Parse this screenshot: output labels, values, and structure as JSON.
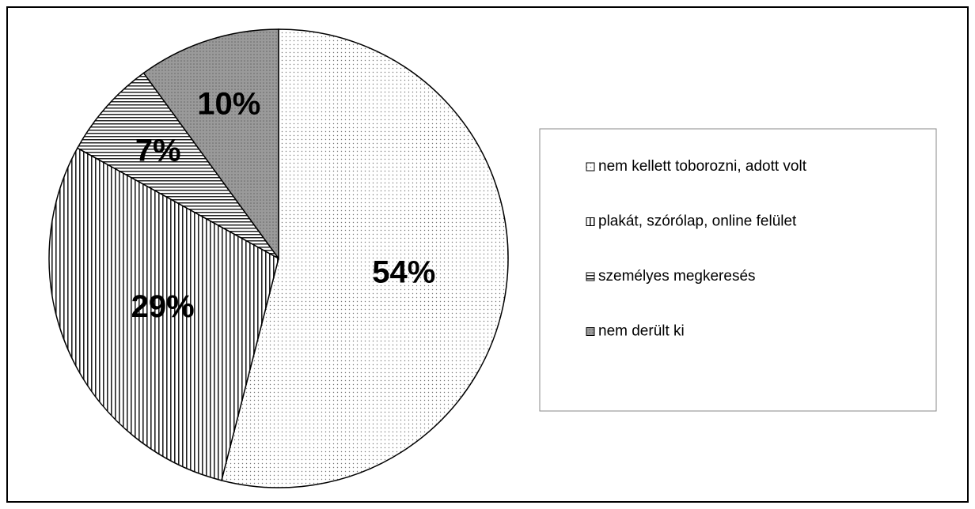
{
  "chart_data": {
    "type": "pie",
    "categories": [
      "nem kellett toborozni, adott volt",
      "plakát, szórólap, online felület",
      "személyes megkeresés",
      "nem derült ki"
    ],
    "values": [
      54,
      29,
      7,
      10
    ],
    "value_labels": [
      "54%",
      "29%",
      "7%",
      "10%"
    ],
    "colors": [
      "#ffffff",
      "#ffffff",
      "#ffffff",
      "#9a9a9a"
    ],
    "patterns": [
      "dots",
      "vertical",
      "horizontal",
      "dense-dots"
    ],
    "legend": "right"
  }
}
